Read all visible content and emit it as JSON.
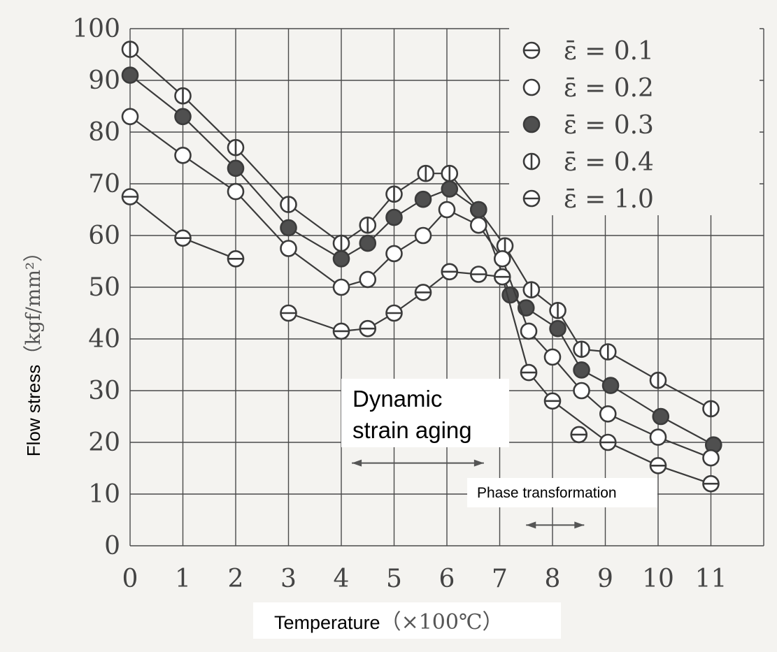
{
  "chart_data": {
    "type": "line",
    "xlabel": "Temperature",
    "xlabel_unit": "（×100℃）",
    "ylabel": "Flow stress",
    "ylabel_unit": "（kgf/mm²）",
    "xlim": [
      0,
      12
    ],
    "ylim": [
      0,
      100
    ],
    "x_ticks": [
      "0",
      "1",
      "2",
      "3",
      "4",
      "5",
      "6",
      "7",
      "8",
      "9",
      "10",
      "11"
    ],
    "y_ticks": [
      "0",
      "10",
      "20",
      "30",
      "40",
      "50",
      "60",
      "70",
      "80",
      "90",
      "100"
    ],
    "grid": true,
    "legend_position": "top-right",
    "legend": [
      {
        "label": "ε̄ = 0.1",
        "marker": "h-line"
      },
      {
        "label": "ε̄ = 0.2",
        "marker": "open"
      },
      {
        "label": "ε̄ = 0.3",
        "marker": "filled"
      },
      {
        "label": "ε̄ = 0.4",
        "marker": "v-line"
      },
      {
        "label": "ε̄ = 1.0",
        "marker": "h-line"
      }
    ],
    "series": [
      {
        "marker": "v-line",
        "x": [
          0,
          1,
          2,
          3,
          4,
          4.5,
          5,
          5.6,
          6.05,
          6.6,
          7.1,
          7.6,
          8.1,
          8.55,
          9.05,
          10,
          11
        ],
        "y": [
          96,
          87,
          77,
          66,
          58.5,
          62,
          68,
          72,
          72,
          65,
          58,
          49.5,
          45.5,
          38,
          37.5,
          32,
          26.5
        ]
      },
      {
        "marker": "filled",
        "x": [
          0,
          1,
          2,
          3,
          4,
          4.5,
          5,
          5.55,
          6.05,
          6.6,
          7.2,
          7.5,
          8.1,
          8.55,
          9.1,
          10.05,
          11.05
        ],
        "y": [
          91,
          83,
          73,
          61.5,
          55.5,
          58.5,
          63.5,
          67,
          69,
          65,
          48.5,
          46,
          42,
          34,
          31,
          25,
          19.5
        ]
      },
      {
        "marker": "open",
        "x": [
          0,
          1,
          2,
          3,
          4,
          4.5,
          5,
          5.55,
          6.0,
          6.6,
          7.05,
          7.55,
          8.0,
          8.55,
          9.05,
          10.0,
          11.0
        ],
        "y": [
          83,
          75.5,
          68.5,
          57.5,
          50,
          51.5,
          56.5,
          60,
          65,
          62,
          55.5,
          41.5,
          36.5,
          30,
          25.5,
          21,
          17
        ]
      },
      {
        "marker": "h-line",
        "x": [
          0,
          1,
          2
        ],
        "y": [
          67.5,
          59.5,
          55.5
        ]
      },
      {
        "marker": "h-line",
        "x": [
          3,
          4,
          4.5,
          5,
          5.55,
          6.05,
          6.6,
          7.05,
          7.55,
          8.0,
          9.05,
          10.0,
          11.0
        ],
        "y": [
          45,
          41.5,
          42,
          45,
          49,
          53,
          52.5,
          52,
          33.5,
          28,
          20,
          15.5,
          12
        ]
      },
      {
        "marker": "h-line",
        "x": [
          8.5
        ],
        "y": [
          21.5
        ]
      }
    ],
    "annotations": [
      {
        "text_lines": [
          "Dynamic",
          "strain aging"
        ],
        "range_x": [
          4.2,
          6.7
        ],
        "y": 16
      },
      {
        "text": "Phase transformation",
        "range_x": [
          7.5,
          8.6
        ],
        "y": 4
      }
    ]
  }
}
